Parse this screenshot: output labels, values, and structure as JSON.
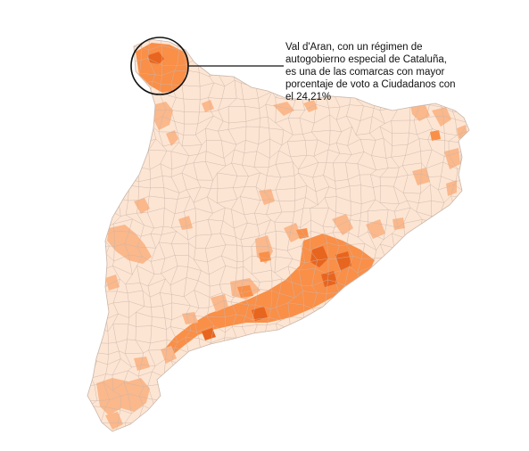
{
  "annotation": {
    "lines": [
      "Val d'Aran, con un régimen de",
      "autogobierno especial de Cataluña,",
      "es una de las comarcas con mayor",
      "porcentaje de voto a Ciudadanos con",
      "el 24,21%"
    ]
  },
  "colors": {
    "background": "#ffffff",
    "low": "#fde5d3",
    "medium": "#fbb88b",
    "high": "#fa8f48",
    "highest": "#e8651f",
    "border": "#c9b6aa",
    "callout": "#111111"
  }
}
